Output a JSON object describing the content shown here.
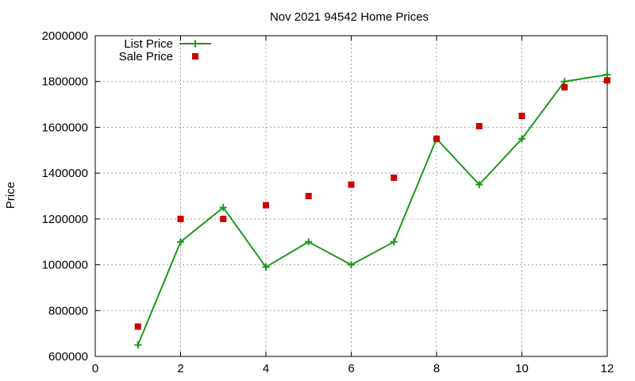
{
  "chart_data": {
    "type": "line",
    "title": "Nov 2021 94542 Home Prices",
    "xlabel": "",
    "ylabel": "Price",
    "xlim": [
      0,
      12
    ],
    "ylim": [
      600000,
      2000000
    ],
    "x_ticks": [
      0,
      2,
      4,
      6,
      8,
      10,
      12
    ],
    "y_ticks": [
      600000,
      800000,
      1000000,
      1200000,
      1400000,
      1600000,
      1800000,
      2000000
    ],
    "grid": true,
    "legend_position": "top-left",
    "series": [
      {
        "name": "List Price",
        "style": "line+cross",
        "color": "#1a9a1a",
        "x": [
          1,
          2,
          3,
          4,
          5,
          6,
          7,
          8,
          9,
          10,
          11,
          12
        ],
        "values": [
          650000,
          1100000,
          1250000,
          990000,
          1100000,
          1000000,
          1100000,
          1550000,
          1350000,
          1550000,
          1800000,
          1830000
        ]
      },
      {
        "name": "Sale Price",
        "style": "square",
        "color": "#cc0000",
        "x": [
          1,
          2,
          3,
          4,
          5,
          6,
          7,
          8,
          9,
          10,
          11,
          12
        ],
        "values": [
          730000,
          1200000,
          1200000,
          1260000,
          1300000,
          1350000,
          1380000,
          1550000,
          1605000,
          1650000,
          1775000,
          1805000
        ]
      }
    ]
  }
}
